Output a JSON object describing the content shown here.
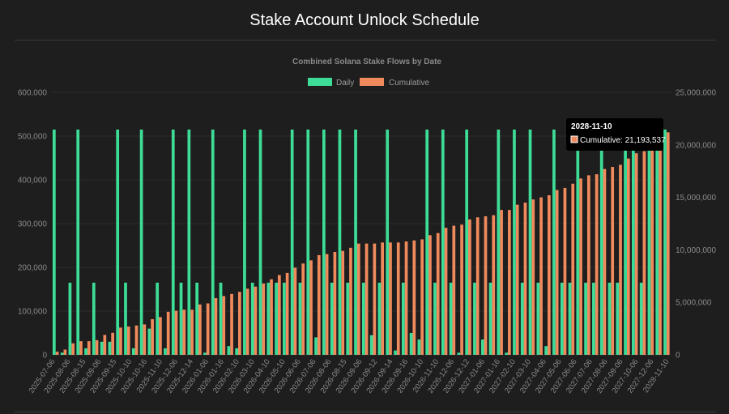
{
  "page": {
    "title": "Stake Account Unlock Schedule"
  },
  "colors": {
    "daily": "#3ddc97",
    "cumulative": "#f08a5d",
    "background": "#1e1e1e",
    "grid": "#2c2c2c"
  },
  "tooltip": {
    "title": "2028-11-10",
    "label": "Cumulative: 21,193,537"
  },
  "chart_data": {
    "type": "bar",
    "title": "Combined Solana Stake Flows by Date",
    "legend": {
      "position": "top",
      "entries": [
        "Daily",
        "Cumulative"
      ]
    },
    "y_left": {
      "min": 0,
      "max": 600000,
      "ticks": [
        "0",
        "100,000",
        "200,000",
        "300,000",
        "400,000",
        "500,000",
        "600,000"
      ]
    },
    "y_right": {
      "min": 0,
      "max": 25000000,
      "ticks": [
        "0",
        "5,000,000",
        "10,000,000",
        "15,000,000",
        "20,000,000",
        "25,000,000"
      ]
    },
    "x_tick_labels": [
      "2025-07-06",
      "2025-08-06",
      "2025-08-15",
      "2025-09-06",
      "2025-09-15",
      "2025-10-10",
      "2025-10-16",
      "2025-11-10",
      "2025-12-06",
      "2025-12-14",
      "2026-01-06",
      "2026-01-16",
      "2026-02-10",
      "2026-03-10",
      "2026-04-10",
      "2026-05-10",
      "2026-06-06",
      "2026-07-06",
      "2026-08-06",
      "2026-08-15",
      "2026-09-06",
      "2026-09-12",
      "2026-09-14",
      "2026-09-16",
      "2026-10-10",
      "2026-11-10",
      "2026-12-06",
      "2026-12-12",
      "2027-01-06",
      "2027-01-16",
      "2027-02-10",
      "2027-03-10",
      "2027-04-06",
      "2027-05-06",
      "2027-06-06",
      "2027-07-06",
      "2027-08-06",
      "2027-09-06",
      "2027-10-06",
      "2027-12-06",
      "2028-11-10"
    ],
    "series": [
      {
        "name": "Daily",
        "axis": "left",
        "values": [
          515000,
          5000,
          165000,
          515000,
          15000,
          165000,
          30000,
          30000,
          515000,
          165000,
          15000,
          515000,
          60000,
          165000,
          15000,
          515000,
          165000,
          515000,
          165000,
          5000,
          515000,
          165000,
          20000,
          15000,
          515000,
          165000,
          515000,
          165000,
          165000,
          165000,
          515000,
          165000,
          515000,
          40000,
          515000,
          165000,
          515000,
          165000,
          515000,
          165000,
          45000,
          165000,
          515000,
          10000,
          165000,
          50000,
          35000,
          515000,
          165000,
          515000,
          165000,
          5000,
          515000,
          165000,
          35000,
          165000,
          515000,
          5000,
          515000,
          165000,
          515000,
          165000,
          20000,
          515000,
          165000,
          165000,
          515000,
          165000,
          165000,
          515000,
          165000,
          165000,
          515000,
          515000,
          165000,
          515000,
          515000,
          515000
        ]
      },
      {
        "name": "Cumulative",
        "axis": "right",
        "values": [
          300000,
          500000,
          1100000,
          1300000,
          1300000,
          1400000,
          1900000,
          2100000,
          2600000,
          2700000,
          2800000,
          2900000,
          3400000,
          3600000,
          4100000,
          4200000,
          4300000,
          4300000,
          4800000,
          4900000,
          5400000,
          5600000,
          5800000,
          6000000,
          6300000,
          6500000,
          6800000,
          7200000,
          7600000,
          7800000,
          8300000,
          8700000,
          9000000,
          9500000,
          9600000,
          9800000,
          9900000,
          10200000,
          10600000,
          10600000,
          10600000,
          10700000,
          10700000,
          10700000,
          10800000,
          10900000,
          11000000,
          11400000,
          11600000,
          12100000,
          12300000,
          12400000,
          12900000,
          13100000,
          13200000,
          13300000,
          13800000,
          13800000,
          14300000,
          14500000,
          14800000,
          15000000,
          15200000,
          15700000,
          15900000,
          16300000,
          16800000,
          17100000,
          17200000,
          17700000,
          17900000,
          18100000,
          18700000,
          19200000,
          19400000,
          19900000,
          20400000,
          21193537
        ]
      }
    ]
  }
}
